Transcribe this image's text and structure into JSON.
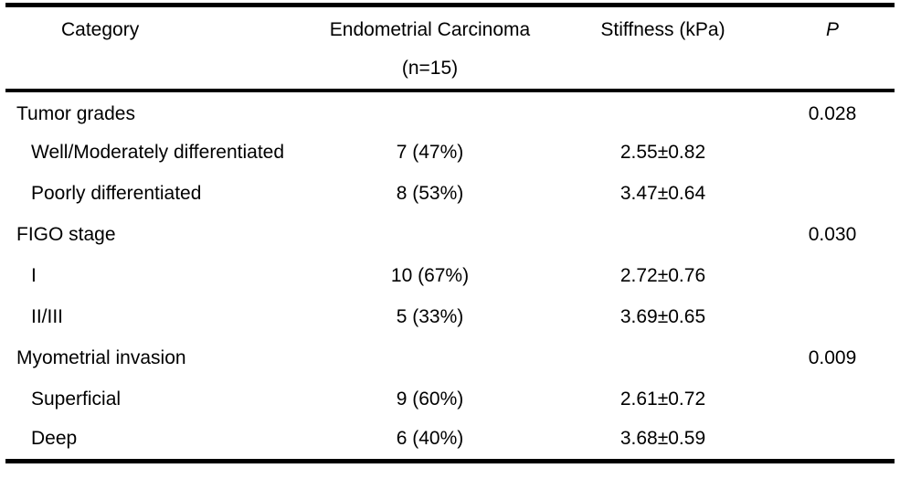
{
  "table": {
    "header": {
      "category": "Category",
      "carcinoma_line1": "Endometrial Carcinoma",
      "carcinoma_line2": "(n=15)",
      "stiffness": "Stiffness (kPa)",
      "p": "P"
    },
    "rows": [
      {
        "category": "Tumor grades",
        "n": "",
        "stiffness": "",
        "p": "0.028"
      },
      {
        "category": "Well/Moderately differentiated",
        "n": "7 (47%)",
        "stiffness": "2.55±0.82",
        "p": ""
      },
      {
        "category": "Poorly differentiated",
        "n": "8 (53%)",
        "stiffness": "3.47±0.64",
        "p": ""
      },
      {
        "category": "FIGO stage",
        "n": "",
        "stiffness": "",
        "p": "0.030"
      },
      {
        "category": "I",
        "n": "10 (67%)",
        "stiffness": "2.72±0.76",
        "p": ""
      },
      {
        "category": "II/III",
        "n": "5 (33%)",
        "stiffness": "3.69±0.65",
        "p": ""
      },
      {
        "category": "Myometrial invasion",
        "n": "",
        "stiffness": "",
        "p": "0.009"
      },
      {
        "category": "Superficial",
        "n": "9 (60%)",
        "stiffness": "2.61±0.72",
        "p": ""
      },
      {
        "category": "Deep",
        "n": "6 (40%)",
        "stiffness": "3.68±0.59",
        "p": ""
      }
    ],
    "colors": {
      "text": "#000000",
      "rule": "#000000",
      "background": "#ffffff"
    }
  }
}
